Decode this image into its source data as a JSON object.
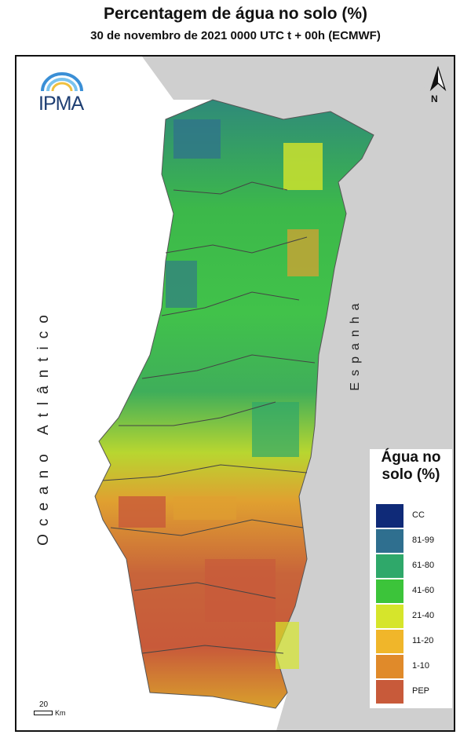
{
  "title": "Percentagem de água no solo (%)",
  "subtitle": "30 de novembro de 2021 0000 UTC t + 00h (ECMWF)",
  "logo": {
    "text": "IPMA",
    "icon": "rainbow-arc-icon"
  },
  "north_arrow": {
    "label": "N",
    "icon": "north-arrow-icon"
  },
  "labels": {
    "ocean": "Oceano Atlântico",
    "spain": "Espanha"
  },
  "legend": {
    "title": "Água no solo (%)",
    "items": [
      {
        "label": "CC",
        "color": "#0f2a78"
      },
      {
        "label": "81-99",
        "color": "#2f6f8f"
      },
      {
        "label": "61-80",
        "color": "#2fa86a"
      },
      {
        "label": "41-60",
        "color": "#3cc43a"
      },
      {
        "label": "21-40",
        "color": "#d6e52b"
      },
      {
        "label": "11-20",
        "color": "#f0b62a"
      },
      {
        "label": "1-10",
        "color": "#e08a2a"
      },
      {
        "label": "PEP",
        "color": "#c85a3a"
      }
    ]
  },
  "scale": {
    "value": "20",
    "unit": "Km"
  },
  "colors": {
    "land_outside": "#cfcfcf",
    "sea": "#ffffff",
    "border": "#444444"
  }
}
